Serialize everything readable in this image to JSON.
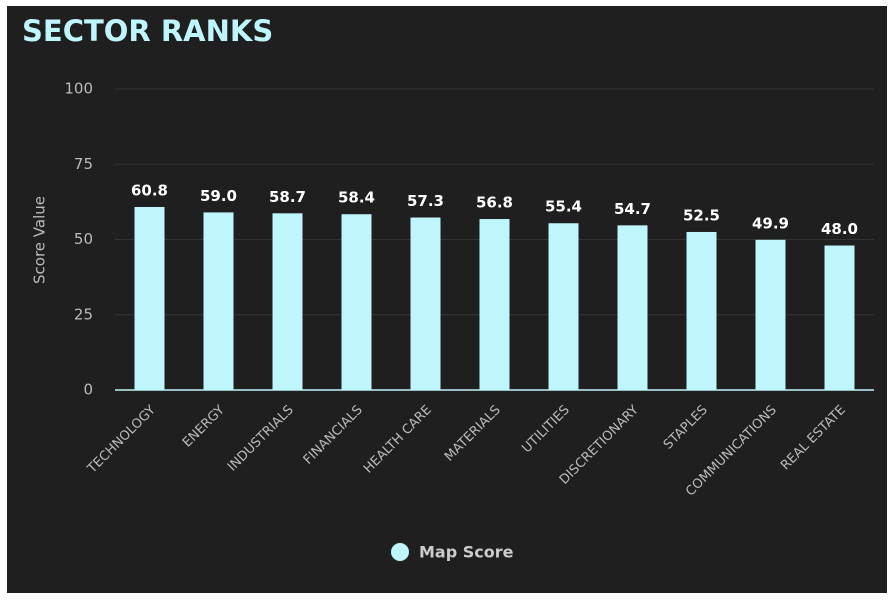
{
  "chart_data": {
    "type": "bar",
    "title": "SECTOR RANKS",
    "y_label": "Score Value",
    "categories": [
      "TECHNOLOGY",
      "ENERGY",
      "INDUSTRIALS",
      "FINANCIALS",
      "HEALTH CARE",
      "MATERIALS",
      "UTILITIES",
      "DISCRETIONARY",
      "STAPLES",
      "COMMUNICATIONS",
      "REAL ESTATE"
    ],
    "series": [
      {
        "name": "Map Score",
        "color": "#bff5fc",
        "values": [
          60.8,
          59,
          58.7,
          58.4,
          57.3,
          56.8,
          55.4,
          54.7,
          52.5,
          49.9,
          48
        ],
        "value_labels": [
          "60.8",
          "59.0",
          "58.7",
          "58.4",
          "57.3",
          "56.8",
          "55.4",
          "54.7",
          "52.5",
          "49.9",
          "48.0"
        ]
      }
    ],
    "ylim": [
      0,
      100
    ],
    "yticks": [
      0,
      25,
      50,
      75,
      100
    ],
    "grid": true,
    "legend": "bottom"
  }
}
